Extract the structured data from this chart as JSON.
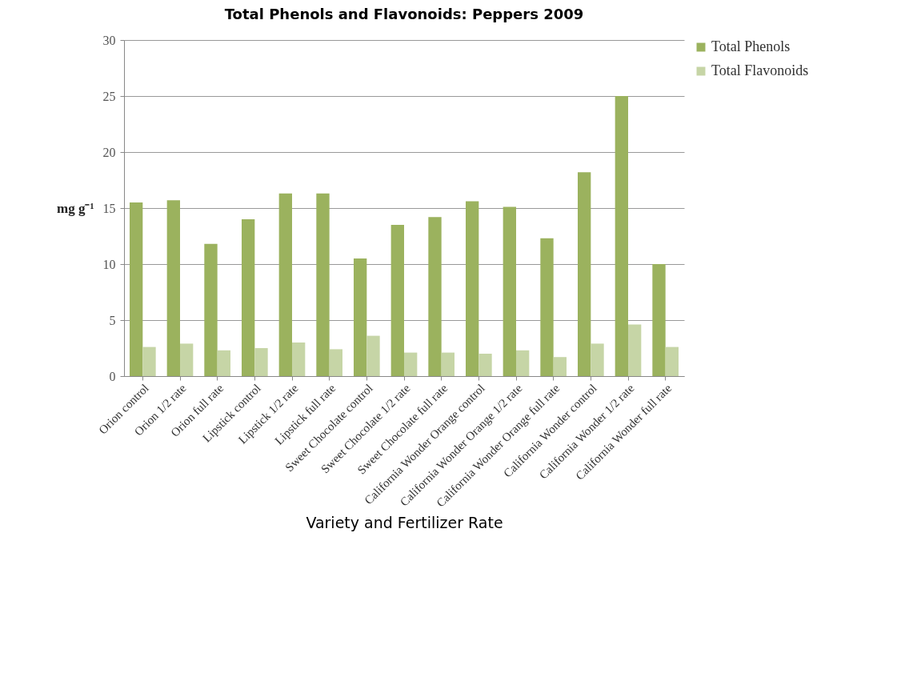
{
  "chart_data": {
    "type": "bar",
    "title": "Total Phenols and Flavonoids: Peppers 2009",
    "xlabel": "Variety and Fertilizer Rate",
    "ylabel": "mg g⁻¹",
    "categories": [
      "Orion control",
      "Orion 1/2 rate",
      "Orion full rate",
      "Lipstick control",
      "Lipstick 1/2 rate",
      "Lipstick full rate",
      "Sweet Chocolate control",
      "Sweet Chocolate 1/2 rate",
      "Sweet Chocolate full rate",
      "California Wonder Orange control",
      "California Wonder Orange 1/2 rate",
      "California Wonder Orange full rate",
      "California Wonder control",
      "California Wonder 1/2 rate",
      "California Wonder full rate"
    ],
    "series": [
      {
        "name": "Total Phenols",
        "color": "#9bb25e",
        "values": [
          15.5,
          15.7,
          11.8,
          14.0,
          16.3,
          16.3,
          10.5,
          13.5,
          14.2,
          15.6,
          15.1,
          12.3,
          18.2,
          25.0,
          10.0
        ]
      },
      {
        "name": "Total Flavonoids",
        "color": "#c6d5a6",
        "values": [
          2.6,
          2.9,
          2.3,
          2.5,
          3.0,
          2.4,
          3.6,
          2.1,
          2.1,
          2.0,
          2.3,
          1.7,
          2.9,
          4.6,
          2.6
        ]
      }
    ],
    "ylim": [
      0,
      30
    ],
    "yticks": [
      0,
      5,
      10,
      15,
      20,
      25,
      30
    ],
    "grid": "y",
    "legend": "right"
  }
}
